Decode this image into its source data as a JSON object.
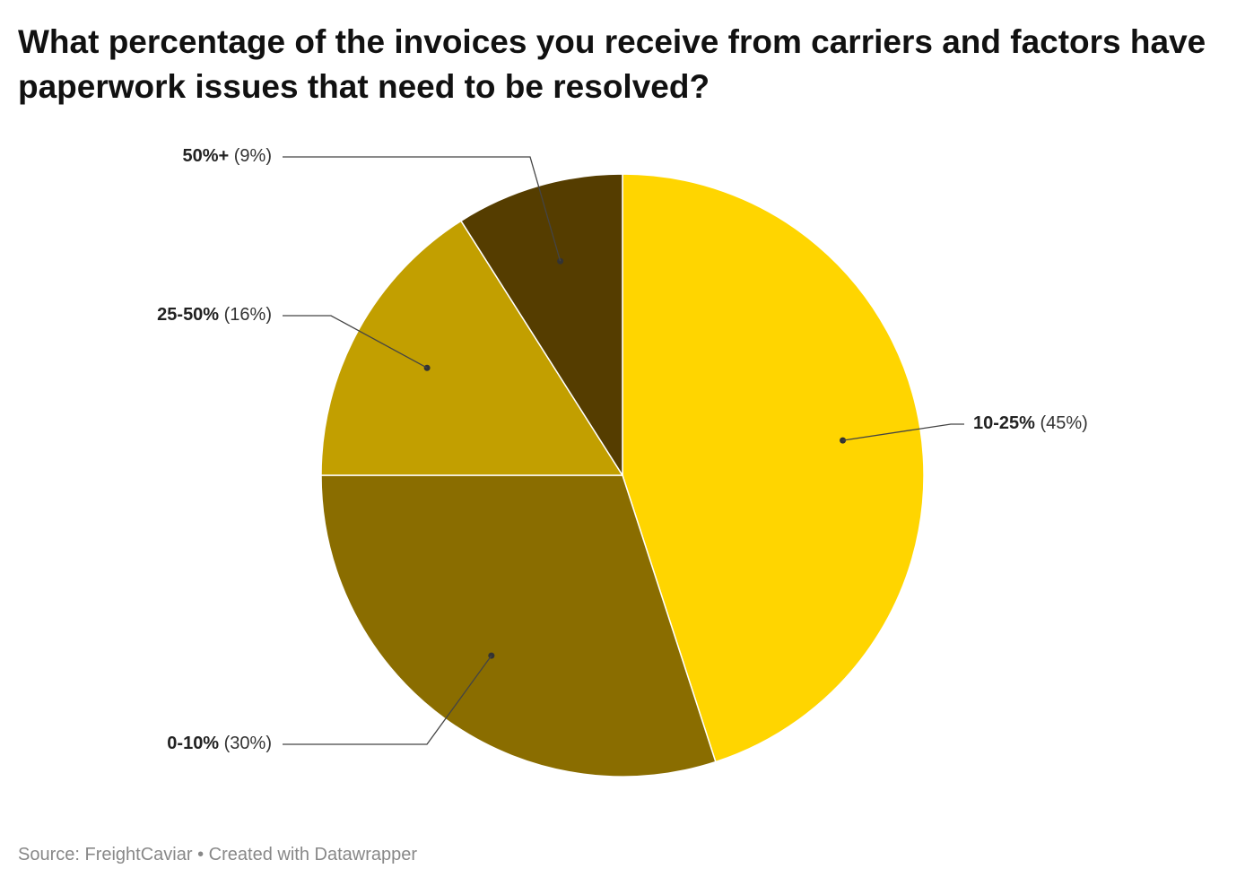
{
  "title": "What percentage of the invoices you receive from carriers and factors have paperwork issues that need to be resolved?",
  "footer": {
    "source": "Source: FreightCaviar",
    "separator": "•",
    "credit": "Created with Datawrapper"
  },
  "chart_data": {
    "type": "pie",
    "title": "What percentage of the invoices you receive from carriers and factors have paperwork issues that need to be resolved?",
    "slices": [
      {
        "label": "10-25%",
        "value": 45,
        "display": "(45%)",
        "color": "#FFD500"
      },
      {
        "label": "0-10%",
        "value": 30,
        "display": "(30%)",
        "color": "#8A6D00"
      },
      {
        "label": "25-50%",
        "value": 16,
        "display": "(16%)",
        "color": "#C29F00"
      },
      {
        "label": "50%+",
        "value": 9,
        "display": "(9%)",
        "color": "#553D00"
      }
    ],
    "legend": "none",
    "labels": "outside-with-leader-lines"
  }
}
